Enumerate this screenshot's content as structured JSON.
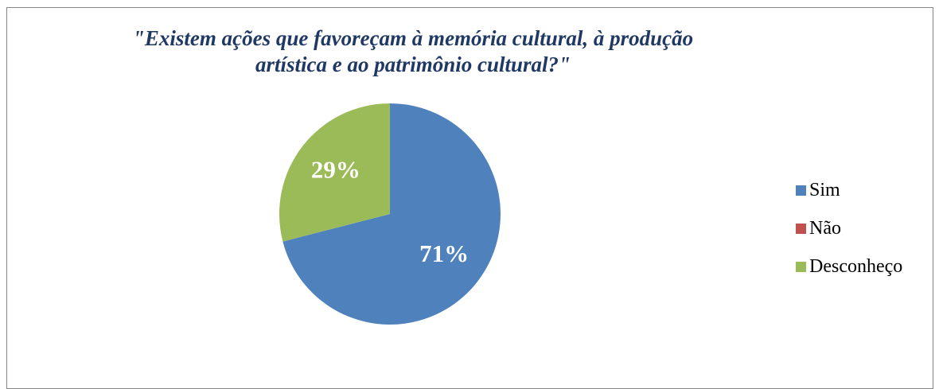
{
  "chart_data": {
    "type": "pie",
    "title": "\"Existem ações que favoreçam à memória cultural, à produção artística e ao patrimônio cultural?\"",
    "title_lines": [
      "\"Existem ações que favoreçam à memória cultural, à produção",
      "artística e ao patrimônio cultural?\""
    ],
    "categories": [
      "Sim",
      "Não",
      "Desconheço"
    ],
    "values": [
      71,
      0,
      29
    ],
    "data_labels": [
      "71%",
      "",
      "29%"
    ],
    "colors": [
      "#4f81bd",
      "#c0504d",
      "#9bbb59"
    ],
    "legend_position": "right",
    "start_angle_deg": 0,
    "direction": "clockwise"
  }
}
